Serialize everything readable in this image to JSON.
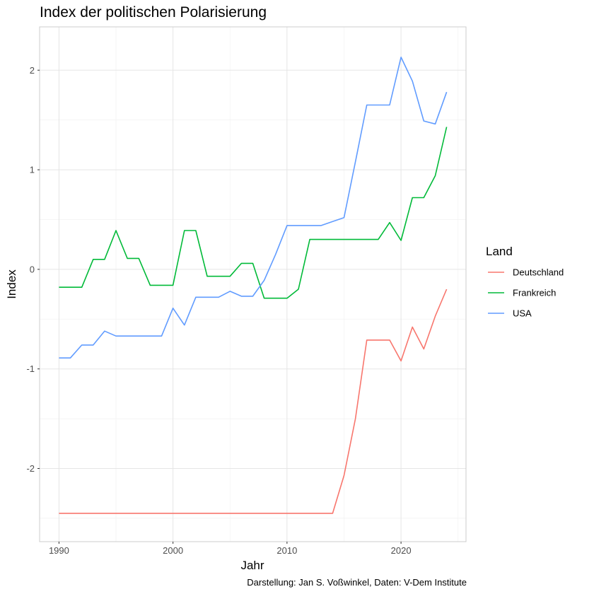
{
  "chart_data": {
    "type": "line",
    "title": "Index der politischen Polarisierung",
    "xlabel": "Jahr",
    "ylabel": "Index",
    "caption": "Darstellung: Jan S. Voßwinkel,  Daten: V-Dem Institute",
    "legend_title": "Land",
    "legend_position": "right",
    "grid": true,
    "xlim": [
      1990,
      2024
    ],
    "ylim": [
      -2.5,
      2.2
    ],
    "x_ticks": [
      1990,
      2000,
      2010,
      2020
    ],
    "y_ticks": [
      -2,
      -1,
      0,
      1,
      2
    ],
    "x_tick_labels": [
      "1990",
      "2000",
      "2010",
      "2020"
    ],
    "y_tick_labels": [
      "-2",
      "-1",
      "0",
      "1",
      "2"
    ],
    "x": [
      1990,
      1991,
      1992,
      1993,
      1994,
      1995,
      1996,
      1997,
      1998,
      1999,
      2000,
      2001,
      2002,
      2003,
      2004,
      2005,
      2006,
      2007,
      2008,
      2009,
      2010,
      2011,
      2012,
      2013,
      2014,
      2015,
      2016,
      2017,
      2018,
      2019,
      2020,
      2021,
      2022,
      2023,
      2024
    ],
    "series": [
      {
        "name": "Deutschland",
        "color": "#F8766D",
        "values": [
          -2.45,
          -2.45,
          -2.45,
          -2.45,
          -2.45,
          -2.45,
          -2.45,
          -2.45,
          -2.45,
          -2.45,
          -2.45,
          -2.45,
          -2.45,
          -2.45,
          -2.45,
          -2.45,
          -2.45,
          -2.45,
          -2.45,
          -2.45,
          -2.45,
          -2.45,
          -2.45,
          -2.45,
          -2.45,
          -2.07,
          -1.5,
          -0.71,
          -0.71,
          -0.71,
          -0.92,
          -0.58,
          -0.8,
          -0.47,
          -0.2
        ]
      },
      {
        "name": "Frankreich",
        "color": "#00BA38",
        "values": [
          -0.18,
          -0.18,
          -0.18,
          0.1,
          0.1,
          0.39,
          0.11,
          0.11,
          -0.16,
          -0.16,
          -0.16,
          0.39,
          0.39,
          -0.07,
          -0.07,
          -0.07,
          0.06,
          0.06,
          -0.29,
          -0.29,
          -0.29,
          -0.2,
          0.3,
          0.3,
          0.3,
          0.3,
          0.3,
          0.3,
          0.3,
          0.47,
          0.29,
          0.72,
          0.72,
          0.94,
          1.43
        ]
      },
      {
        "name": "USA",
        "color": "#619CFF",
        "values": [
          -0.89,
          -0.89,
          -0.76,
          -0.76,
          -0.62,
          -0.67,
          -0.67,
          -0.67,
          -0.67,
          -0.67,
          -0.39,
          -0.56,
          -0.28,
          -0.28,
          -0.28,
          -0.22,
          -0.27,
          -0.27,
          -0.11,
          0.15,
          0.44,
          0.44,
          0.44,
          0.44,
          0.48,
          0.52,
          1.08,
          1.65,
          1.65,
          1.65,
          2.13,
          1.89,
          1.49,
          1.46,
          1.78
        ]
      }
    ]
  }
}
